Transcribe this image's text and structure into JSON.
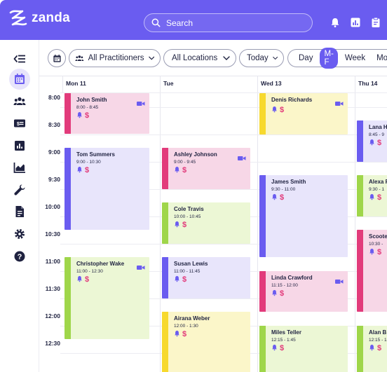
{
  "app": {
    "name": "zanda"
  },
  "search": {
    "placeholder": "Search"
  },
  "toolbar": {
    "practitioners_label": "All Practitioners",
    "locations_label": "All Locations",
    "today_label": "Today",
    "views": [
      "Day",
      "M-F",
      "Week",
      "Month"
    ],
    "active_view": "M-F"
  },
  "days": [
    "Mon 11",
    "Tue",
    "Wed 13",
    "Thu 14"
  ],
  "times": [
    "8:00",
    "8:30",
    "9:00",
    "9:30",
    "10:00",
    "10:30",
    "11:00",
    "11:30",
    "12:00",
    "12:30"
  ],
  "colors": {
    "brand": "#6a5cf0",
    "pink": "#e23b7b",
    "purple": "#6a5cf0",
    "green": "#9fd64a",
    "yellow": "#f7d92e",
    "pinkbg": "#f7d7e7",
    "purplebg": "#e8e5fb",
    "greenbg": "#ecf7d5",
    "yellowbg": "#fbf6c9",
    "dollar": "#e23b7b",
    "bell": "#6a5cf0"
  },
  "events": [
    {
      "title": "John Smith",
      "time": "8:00 - 8:45",
      "day": 0,
      "color": "pink",
      "video": true
    },
    {
      "title": "Tom Summers",
      "time": "9:00 - 10:30",
      "day": 0,
      "color": "purple",
      "video": false
    },
    {
      "title": "Christopher Wake",
      "time": "11:00 - 12:30",
      "day": 0,
      "color": "green",
      "video": true
    },
    {
      "title": "Ashley Johnson",
      "time": "9:00 - 9:45",
      "day": 1,
      "color": "pink",
      "video": true
    },
    {
      "title": "Cole Travis",
      "time": "10:00 - 10:45",
      "day": 1,
      "color": "green",
      "video": false
    },
    {
      "title": "Susan Lewis",
      "time": "11:00 - 11:45",
      "day": 1,
      "color": "purple",
      "video": false
    },
    {
      "title": "Airana Weber",
      "time": "12:00 - 1:30",
      "day": 1,
      "color": "yellow",
      "video": false
    },
    {
      "title": "Denis Richards",
      "time": "",
      "day": 2,
      "color": "yellow",
      "video": true
    },
    {
      "title": "James Smith",
      "time": "9:30 - 11:00",
      "day": 2,
      "color": "purple",
      "video": false
    },
    {
      "title": "Linda Crawford",
      "time": "11:15 - 12:00",
      "day": 2,
      "color": "pink",
      "video": true
    },
    {
      "title": "Miles Teller",
      "time": "12:15 - 1:45",
      "day": 2,
      "color": "green",
      "video": false
    },
    {
      "title": "Lana H",
      "time": "8:45 - 9",
      "day": 3,
      "color": "purple",
      "video": false
    },
    {
      "title": "Alexa F",
      "time": "9:30 - 1",
      "day": 3,
      "color": "green",
      "video": false
    },
    {
      "title": "Scoote",
      "time": "10:30 -",
      "day": 3,
      "color": "pink",
      "video": false
    },
    {
      "title": "Alan B",
      "time": "12:15 - 1",
      "day": 3,
      "color": "green",
      "video": false
    }
  ]
}
